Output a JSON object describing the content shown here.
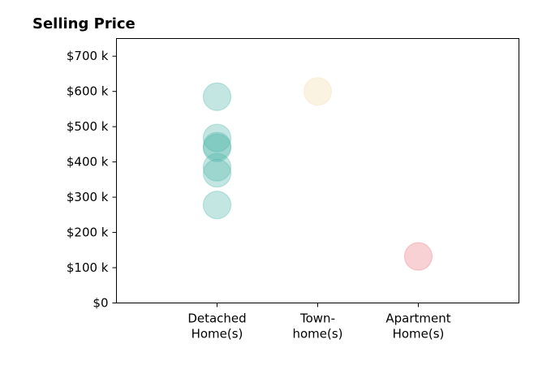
{
  "chart_data": {
    "type": "scatter",
    "title": "Selling Price",
    "xlabel": "",
    "ylabel": "",
    "categories": [
      [
        "Detached",
        "Home(s)"
      ],
      [
        "Town-",
        "home(s)"
      ],
      [
        "Apartment",
        "Home(s)"
      ]
    ],
    "xlim": [
      0,
      4
    ],
    "ylim": [
      0,
      750
    ],
    "y_ticks": [
      0,
      100,
      200,
      300,
      400,
      500,
      600,
      700
    ],
    "y_tick_labels": [
      "$0",
      "$100 k",
      "$200 k",
      "$300 k",
      "$400 k",
      "$500 k",
      "$600 k",
      "$700 k"
    ],
    "grid": false,
    "marker_opacity": 0.35,
    "series": [
      {
        "category_index": 0,
        "color": "#52b8ad",
        "values": [
          585,
          468,
          445,
          440,
          385,
          368,
          278
        ]
      },
      {
        "category_index": 1,
        "color": "#f3dca8",
        "values": [
          600
        ]
      },
      {
        "category_index": 2,
        "color": "#ec7c87",
        "values": [
          132
        ]
      }
    ]
  }
}
